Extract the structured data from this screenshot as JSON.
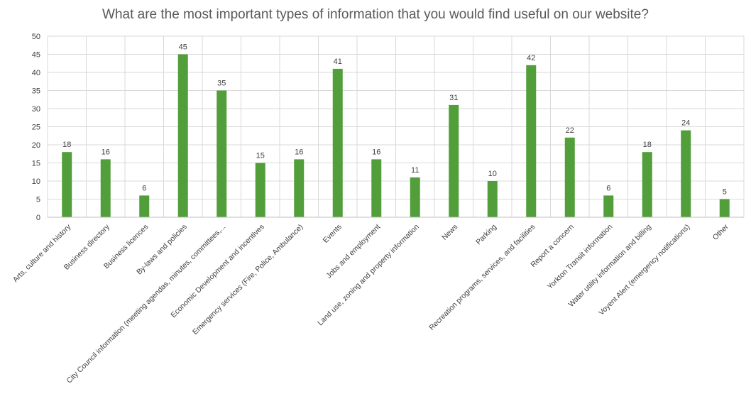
{
  "chart_data": {
    "type": "bar",
    "title": "What are the most important types of information that you would find useful on our website?",
    "xlabel": "",
    "ylabel": "",
    "ylim": [
      0,
      50
    ],
    "yticks": [
      0,
      5,
      10,
      15,
      20,
      25,
      30,
      35,
      40,
      45,
      50
    ],
    "grid": true,
    "bar_color": "#519E3A",
    "categories": [
      "Arts, culture and history",
      "Business directory",
      "Business licences",
      "By-laws and policies",
      "City Council information (meeting agendas, minutes, committees,...",
      "Economic Development and incentives",
      "Emergency services (Fire, Police, Ambulance)",
      "Events",
      "Jobs and employment",
      "Land use, zoning and property information",
      "News",
      "Parking",
      "Recreation programs, services, and facilities",
      "Report a concern",
      "Yorkton Transit information",
      "Water utility information and billing",
      "Voyent Alert (emergency notifications)",
      "Other"
    ],
    "values": [
      18,
      16,
      6,
      45,
      35,
      15,
      16,
      41,
      16,
      11,
      31,
      10,
      42,
      22,
      6,
      18,
      24,
      5
    ]
  }
}
